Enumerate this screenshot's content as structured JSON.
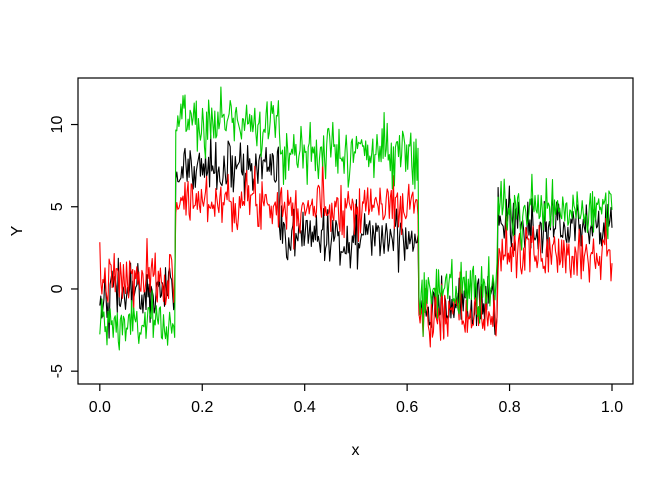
{
  "chart_data": {
    "type": "line",
    "title": "",
    "xlabel": "x",
    "ylabel": "Y",
    "grid": false,
    "legend": null,
    "background": "#ffffff",
    "axis_color": "#000000",
    "xlim": [
      -0.0426,
      1.041
    ],
    "ylim": [
      -5.78,
      12.83
    ],
    "x_ticks": {
      "values": [
        0.0,
        0.2,
        0.4,
        0.6,
        0.8,
        1.0
      ],
      "labels": [
        "0.0",
        "0.2",
        "0.4",
        "0.6",
        "0.8",
        "1.0"
      ]
    },
    "y_ticks": {
      "values": [
        -5,
        0,
        5,
        10
      ],
      "labels": [
        "-5",
        "0",
        "5",
        "10"
      ]
    },
    "description": "Three noisy piecewise-constant step signals (black, red, green) sampled densely on x in [0,1]; each series is segment mean plus Gaussian noise.",
    "x_data_range": [
      0,
      1
    ],
    "points_per_series": 500,
    "series": [
      {
        "name": "black",
        "color": "#000000",
        "seed": 42,
        "noise_sd": 0.85,
        "breakpoints": [
          0.147,
          0.35,
          0.623,
          0.776
        ],
        "segment_means": [
          -0.2,
          7.3,
          3.2,
          -0.9,
          3.8
        ]
      },
      {
        "name": "red",
        "color": "#FF0000",
        "seed": 7,
        "noise_sd": 0.85,
        "breakpoints": [
          0.147,
          0.35,
          0.623,
          0.776
        ],
        "segment_means": [
          0.5,
          5.4,
          5.1,
          -1.7,
          2.2
        ]
      },
      {
        "name": "green",
        "color": "#00CC00",
        "seed": 1234,
        "noise_sd": 0.85,
        "breakpoints": [
          0.147,
          0.35,
          0.623,
          0.776
        ],
        "segment_means": [
          -2.2,
          10.3,
          8.4,
          -0.2,
          4.8
        ]
      }
    ]
  }
}
